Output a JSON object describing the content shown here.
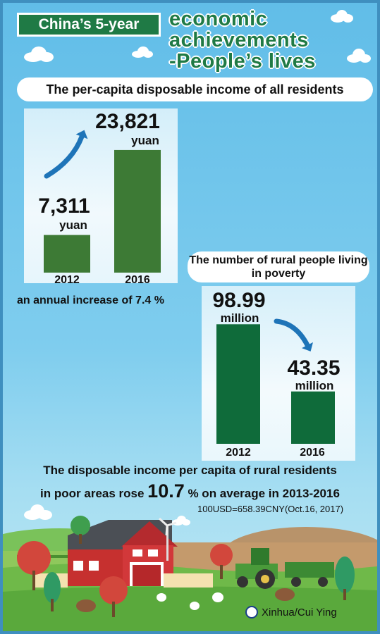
{
  "header": {
    "badge": "China’s 5-year",
    "title_lines": [
      "economic",
      "achievements",
      "-People’s lives"
    ]
  },
  "chart_data": [
    {
      "type": "bar",
      "title": "The per-capita disposable income of all residents",
      "categories": [
        "2012",
        "2016"
      ],
      "values": [
        7311,
        23821
      ],
      "value_labels": [
        "7,311",
        "23,821"
      ],
      "unit": "yuan",
      "trend": "up",
      "bar_color": "#3d7a35",
      "ylim": [
        0,
        26000
      ]
    },
    {
      "type": "bar",
      "title": "The number of rural people living in poverty",
      "categories": [
        "2012",
        "2016"
      ],
      "values": [
        98.99,
        43.35
      ],
      "value_labels": [
        "98.99",
        "43.35"
      ],
      "unit": "million",
      "trend": "down",
      "bar_color": "#0f6b3a",
      "ylim": [
        0,
        105
      ]
    }
  ],
  "notes": {
    "annual_increase": "an annual increase of 7.4 %",
    "rural_line1": "The disposable income per capita of rural residents",
    "rural_line2_pre": "in poor areas rose",
    "rural_line2_num": "10.7",
    "rural_line2_post": "% on average in 2013-2016",
    "exchange": "100USD=658.39CNY(Oct.16, 2017)",
    "credit": "Xinhua/Cui Ying"
  },
  "colors": {
    "accent": "#1f7a45",
    "sky": "#61bde8",
    "arrow": "#1e74b8"
  }
}
